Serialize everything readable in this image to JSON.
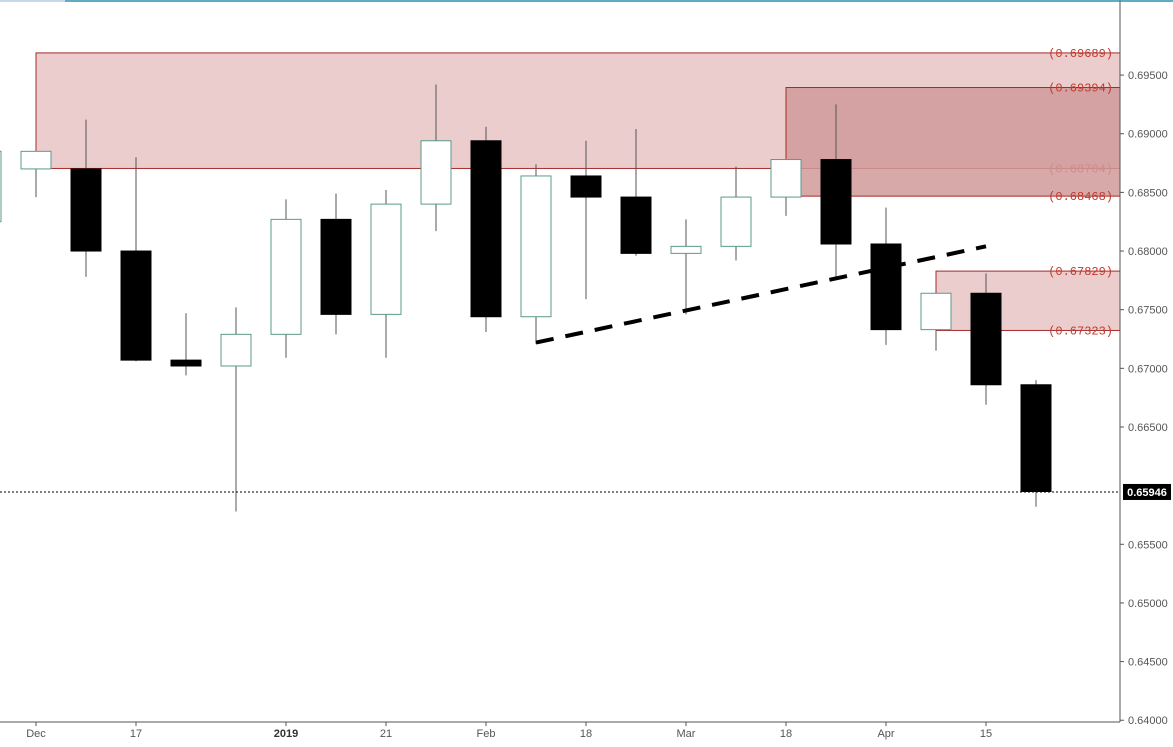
{
  "chart_data": {
    "type": "candlestick",
    "title": "",
    "y_axis": {
      "position": "right",
      "range": [
        0.63985,
        0.70106
      ],
      "ticks": [
        "0.69500",
        "0.69000",
        "0.68500",
        "0.68000",
        "0.67500",
        "0.67000",
        "0.66500",
        "0.65500",
        "0.65000",
        "0.64500",
        "0.64000"
      ]
    },
    "x_axis": {
      "tick_labels": [
        {
          "label": "Dec",
          "index": 0,
          "bold": false
        },
        {
          "label": "17",
          "index": 2,
          "bold": false
        },
        {
          "label": "2019",
          "index": 5,
          "bold": true
        },
        {
          "label": "21",
          "index": 7,
          "bold": false
        },
        {
          "label": "Feb",
          "index": 9,
          "bold": false
        },
        {
          "label": "18",
          "index": 11,
          "bold": false
        },
        {
          "label": "Mar",
          "index": 13,
          "bold": false
        },
        {
          "label": "18",
          "index": 15,
          "bold": false
        },
        {
          "label": "Apr",
          "index": 17,
          "bold": false
        },
        {
          "label": "15",
          "index": 19,
          "bold": false
        }
      ]
    },
    "candles": [
      {
        "index": -1,
        "open": 0.6825,
        "high": 0.689,
        "low": 0.682,
        "close": 0.6885,
        "partial": true
      },
      {
        "index": 0,
        "open": 0.687,
        "high": 0.6885,
        "low": 0.6846,
        "close": 0.6885
      },
      {
        "index": 1,
        "open": 0.687,
        "high": 0.6912,
        "low": 0.6778,
        "close": 0.68
      },
      {
        "index": 2,
        "open": 0.68,
        "high": 0.688,
        "low": 0.6706,
        "close": 0.6707
      },
      {
        "index": 3,
        "open": 0.6707,
        "high": 0.6747,
        "low": 0.6694,
        "close": 0.6702
      },
      {
        "index": 4,
        "open": 0.6702,
        "high": 0.6752,
        "low": 0.6578,
        "close": 0.6729
      },
      {
        "index": 5,
        "open": 0.6729,
        "high": 0.6844,
        "low": 0.6709,
        "close": 0.6827
      },
      {
        "index": 6,
        "open": 0.6827,
        "high": 0.6849,
        "low": 0.6729,
        "close": 0.6746
      },
      {
        "index": 7,
        "open": 0.6746,
        "high": 0.6852,
        "low": 0.6709,
        "close": 0.684
      },
      {
        "index": 8,
        "open": 0.684,
        "high": 0.6942,
        "low": 0.6817,
        "close": 0.6894
      },
      {
        "index": 9,
        "open": 0.6894,
        "high": 0.6906,
        "low": 0.6731,
        "close": 0.6744
      },
      {
        "index": 10,
        "open": 0.6744,
        "high": 0.6874,
        "low": 0.6721,
        "close": 0.6864
      },
      {
        "index": 11,
        "open": 0.6864,
        "high": 0.6894,
        "low": 0.6759,
        "close": 0.6846
      },
      {
        "index": 12,
        "open": 0.6846,
        "high": 0.6904,
        "low": 0.6796,
        "close": 0.6798
      },
      {
        "index": 13,
        "open": 0.6798,
        "high": 0.6827,
        "low": 0.6746,
        "close": 0.6804
      },
      {
        "index": 14,
        "open": 0.6804,
        "high": 0.6872,
        "low": 0.6792,
        "close": 0.6846
      },
      {
        "index": 15,
        "open": 0.6846,
        "high": 0.6878,
        "low": 0.683,
        "close": 0.6878
      },
      {
        "index": 16,
        "open": 0.6878,
        "high": 0.6925,
        "low": 0.6776,
        "close": 0.6806
      },
      {
        "index": 17,
        "open": 0.6806,
        "high": 0.6837,
        "low": 0.672,
        "close": 0.6733
      },
      {
        "index": 18,
        "open": 0.6733,
        "high": 0.6764,
        "low": 0.6715,
        "close": 0.6764
      },
      {
        "index": 19,
        "open": 0.6764,
        "high": 0.6781,
        "low": 0.6669,
        "close": 0.6686
      },
      {
        "index": 20,
        "open": 0.6686,
        "high": 0.669,
        "low": 0.6582,
        "close": 0.6595
      }
    ],
    "zones": [
      {
        "from_index": 0,
        "low": 0.68704,
        "high": 0.69689,
        "color": "#e8c4c4",
        "labels": [
          "(0.69689)",
          "(0.68704)"
        ]
      },
      {
        "from_index": 15,
        "low": 0.68468,
        "high": 0.69394,
        "color": "#d09a9a",
        "labels": [
          "(0.69394)",
          "(0.68468)"
        ]
      },
      {
        "from_index": 18,
        "low": 0.67323,
        "high": 0.67829,
        "color": "#e8c4c4",
        "labels": [
          "(0.67829)",
          "(0.67323)"
        ]
      }
    ],
    "trendline": {
      "from_index": 10,
      "from_value": 0.6722,
      "to_index": 19,
      "to_value": 0.6804,
      "style": "dashed"
    },
    "current_price": {
      "value": 0.65946,
      "label": "0.65946"
    },
    "grid": false,
    "colors": {
      "bear_body": "#000000",
      "bull_border": "#5a9a8a",
      "wick": "#555555",
      "zone_border": "#a52a2a",
      "zone_label": "#c0392b"
    }
  }
}
